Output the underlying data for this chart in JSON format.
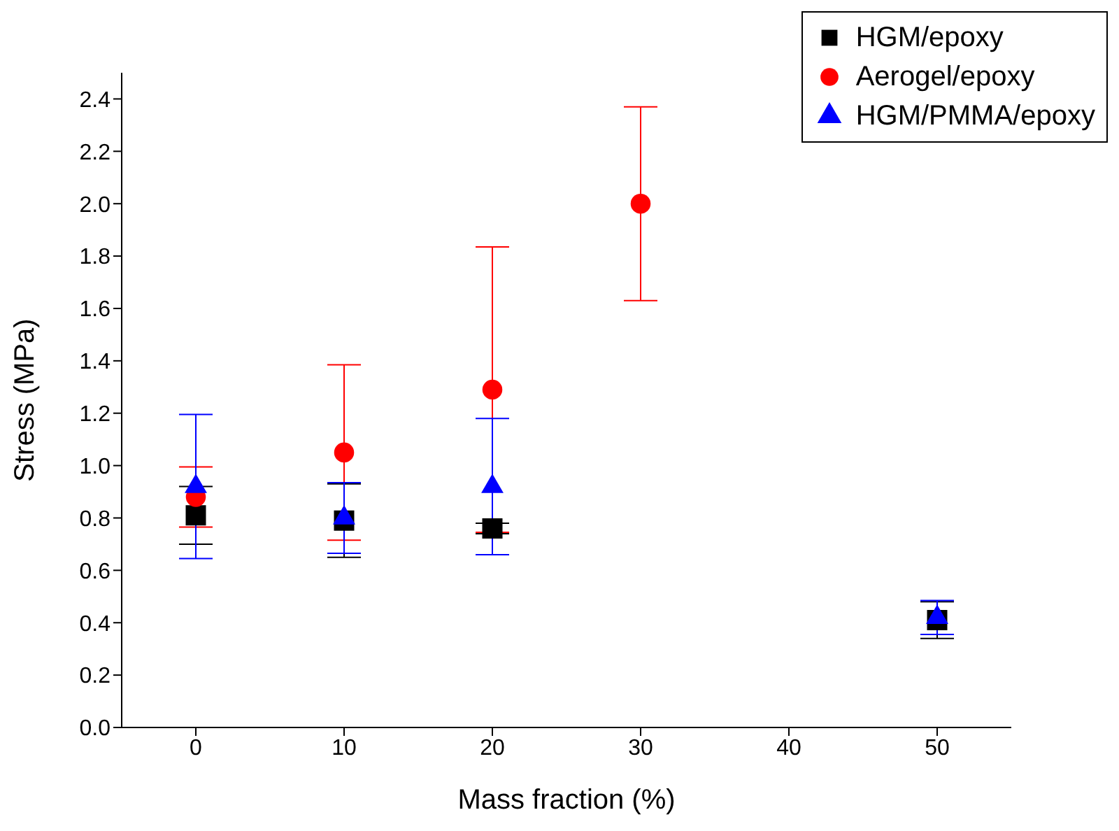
{
  "chart_data": {
    "type": "scatter",
    "xlabel": "Mass fraction (%)",
    "ylabel": "Stress (MPa)",
    "xlim": [
      -5,
      55
    ],
    "xticks": [
      0,
      10,
      20,
      30,
      40,
      50
    ],
    "ylim": [
      0,
      2.5
    ],
    "yticks": [
      {
        "value": 0,
        "label": "0.0"
      },
      0.2,
      0.4,
      0.6,
      0.8,
      {
        "value": 1,
        "label": "1.0"
      },
      1.2,
      1.4,
      1.6,
      1.8,
      {
        "value": 2,
        "label": "2.0"
      },
      2.2,
      2.4
    ],
    "grid": false,
    "legend": "top right",
    "series": [
      {
        "name": "HGM/epoxy",
        "color": "#000000",
        "marker": "square",
        "x": [
          0,
          10,
          20,
          50
        ],
        "values": [
          0.81,
          0.79,
          0.76,
          0.41
        ],
        "errors": [
          0.11,
          0.14,
          0.02,
          0.07
        ]
      },
      {
        "name": "Aerogel/epoxy",
        "color": "#ff0000",
        "marker": "circle",
        "x": [
          0,
          10,
          20,
          30
        ],
        "values": [
          0.88,
          1.05,
          1.29,
          2.0
        ],
        "errors": [
          0.115,
          0.335,
          0.545,
          0.37
        ]
      },
      {
        "name": "HGM/PMMA/epoxy",
        "color": "#0000ff",
        "marker": "triangle",
        "x": [
          0,
          10,
          20,
          50
        ],
        "values": [
          0.92,
          0.8,
          0.92,
          0.42
        ],
        "errors": [
          0.275,
          0.135,
          0.26,
          0.065
        ]
      }
    ]
  }
}
